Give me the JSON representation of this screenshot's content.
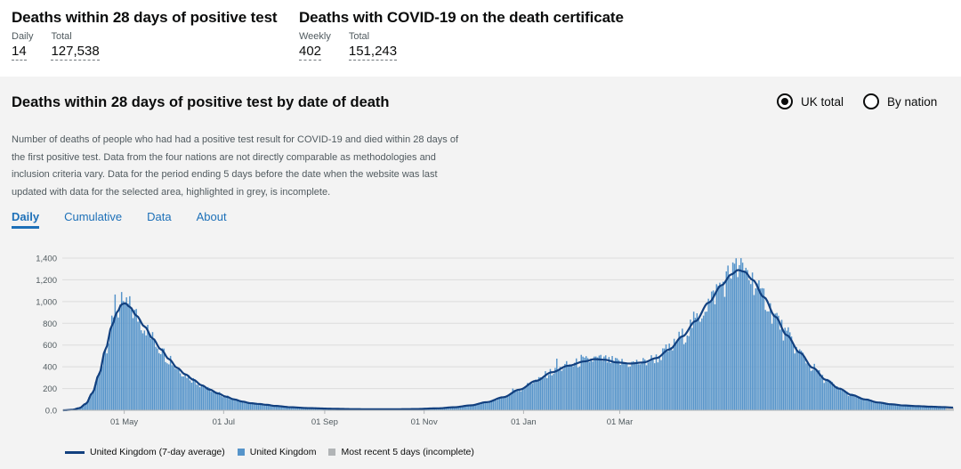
{
  "headlines": [
    {
      "title": "Deaths within 28 days of positive test",
      "items": [
        {
          "label": "Daily",
          "value": "14"
        },
        {
          "label": "Total",
          "value": "127,538"
        }
      ]
    },
    {
      "title": "Deaths with COVID-19 on the death certificate",
      "items": [
        {
          "label": "Weekly",
          "value": "402"
        },
        {
          "label": "Total",
          "value": "151,243"
        }
      ]
    }
  ],
  "card": {
    "title": "Deaths within 28 days of positive test by date of death",
    "radio_options": [
      {
        "label": "UK total",
        "checked": true
      },
      {
        "label": "By nation",
        "checked": false
      }
    ],
    "description": "Number of deaths of people who had had a positive test result for COVID-19 and died within 28 days of the first positive test. Data from the four nations are not directly comparable as methodologies and inclusion criteria vary. Data for the period ending 5 days before the date when the website was last updated with data for the selected area, highlighted in grey, is incomplete.",
    "tabs": [
      "Daily",
      "Cumulative",
      "Data",
      "About"
    ],
    "active_tab": "Daily"
  },
  "legend": {
    "line": "United Kingdom (7-day average)",
    "bars": "United Kingdom",
    "incomplete": "Most recent 5 days (incomplete)"
  },
  "colors": {
    "bar": "#5694ca",
    "line": "#12407f",
    "incomplete": "#b1b4b6",
    "link": "#1d70b8"
  },
  "chart_data": {
    "type": "bar",
    "title": "Deaths within 28 days of positive test by date of death",
    "ylim": [
      0,
      1400
    ],
    "y_ticks": [
      "0.0",
      "200",
      "400",
      "600",
      "800",
      "1,000",
      "1,200",
      "1,400"
    ],
    "x_ticks": [
      "01 May",
      "01 Jul",
      "01 Sep",
      "01 Nov",
      "01 Jan",
      "01 Mar"
    ],
    "grid": true,
    "series": [
      {
        "name": "United Kingdom (7-day average)",
        "kind": "line"
      },
      {
        "name": "United Kingdom",
        "kind": "bar"
      }
    ],
    "avg_anchors": [
      [
        0,
        0
      ],
      [
        6,
        5
      ],
      [
        10,
        20
      ],
      [
        14,
        60
      ],
      [
        18,
        160
      ],
      [
        22,
        330
      ],
      [
        26,
        560
      ],
      [
        30,
        780
      ],
      [
        33,
        900
      ],
      [
        36,
        975
      ],
      [
        38,
        985
      ],
      [
        41,
        950
      ],
      [
        45,
        870
      ],
      [
        50,
        770
      ],
      [
        55,
        660
      ],
      [
        60,
        560
      ],
      [
        65,
        470
      ],
      [
        70,
        390
      ],
      [
        75,
        330
      ],
      [
        80,
        280
      ],
      [
        85,
        230
      ],
      [
        90,
        190
      ],
      [
        95,
        155
      ],
      [
        100,
        125
      ],
      [
        105,
        100
      ],
      [
        110,
        80
      ],
      [
        115,
        65
      ],
      [
        120,
        58
      ],
      [
        125,
        50
      ],
      [
        130,
        40
      ],
      [
        140,
        28
      ],
      [
        150,
        20
      ],
      [
        165,
        14
      ],
      [
        180,
        10
      ],
      [
        200,
        9
      ],
      [
        215,
        11
      ],
      [
        230,
        18
      ],
      [
        240,
        28
      ],
      [
        250,
        45
      ],
      [
        260,
        75
      ],
      [
        270,
        120
      ],
      [
        280,
        190
      ],
      [
        290,
        270
      ],
      [
        300,
        350
      ],
      [
        310,
        410
      ],
      [
        320,
        450
      ],
      [
        326,
        470
      ],
      [
        332,
        465
      ],
      [
        340,
        440
      ],
      [
        348,
        430
      ],
      [
        356,
        440
      ],
      [
        364,
        480
      ],
      [
        372,
        560
      ],
      [
        380,
        680
      ],
      [
        388,
        820
      ],
      [
        396,
        990
      ],
      [
        404,
        1150
      ],
      [
        410,
        1250
      ],
      [
        414,
        1290
      ],
      [
        418,
        1275
      ],
      [
        423,
        1200
      ],
      [
        430,
        1040
      ],
      [
        437,
        860
      ],
      [
        444,
        690
      ],
      [
        452,
        530
      ],
      [
        460,
        390
      ],
      [
        468,
        280
      ],
      [
        476,
        200
      ],
      [
        484,
        140
      ],
      [
        492,
        100
      ],
      [
        500,
        72
      ],
      [
        508,
        55
      ],
      [
        516,
        44
      ],
      [
        524,
        38
      ],
      [
        532,
        33
      ],
      [
        540,
        29
      ],
      [
        546,
        25
      ]
    ],
    "spikes": [
      [
        32,
        1065
      ],
      [
        37,
        1005
      ],
      [
        61,
        570
      ],
      [
        66,
        500
      ],
      [
        276,
        200
      ],
      [
        303,
        475
      ],
      [
        318,
        510
      ],
      [
        322,
        480
      ],
      [
        335,
        490
      ],
      [
        411,
        1360
      ],
      [
        415,
        1335
      ],
      [
        420,
        1290
      ],
      [
        428,
        1120
      ]
    ],
    "days": 547,
    "incomplete_days": 5
  }
}
